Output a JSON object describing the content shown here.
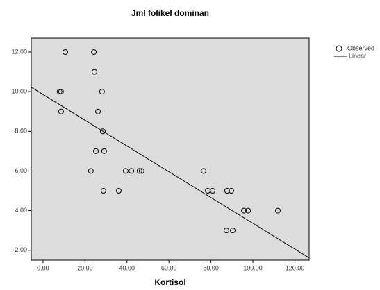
{
  "chart_data": {
    "type": "scatter",
    "title": "Jml folikel dominan",
    "x_label": "Kortisol",
    "series": [
      {
        "name": "Observed",
        "color": "#000000",
        "x": [
          10.6,
          24.2,
          24.5,
          7.9,
          8.6,
          28.1,
          8.6,
          26.2,
          28.5,
          25.2,
          29.1,
          22.8,
          39.4,
          42.1,
          46.0,
          47.0,
          76.5,
          28.8,
          36.1,
          78.5,
          80.8,
          87.7,
          89.7,
          95.7,
          97.7,
          111.9,
          87.4,
          90.4
        ],
        "values": [
          12,
          12,
          11,
          10,
          10,
          10,
          9,
          9,
          8,
          7,
          7,
          6,
          6,
          6,
          6,
          6,
          6,
          5,
          5,
          5,
          5,
          5,
          5,
          4,
          4,
          4,
          3,
          3
        ]
      }
    ],
    "fit": {
      "name": "Linear",
      "color": "#000000",
      "intercept": 9.86,
      "slope": -0.065
    },
    "xlim": [
      -5.6,
      126.8
    ],
    "ylim": [
      1.5,
      12.7
    ],
    "xticks": [
      {
        "value": 0,
        "label": "0.00"
      },
      {
        "value": 20,
        "label": "20.00"
      },
      {
        "value": 40,
        "label": "40.00"
      },
      {
        "value": 60,
        "label": "60.00"
      },
      {
        "value": 80,
        "label": "80.00"
      },
      {
        "value": 100,
        "label": "100.00"
      },
      {
        "value": 120,
        "label": "120.00"
      }
    ],
    "yticks": [
      {
        "value": 2,
        "label": "2.00"
      },
      {
        "value": 4,
        "label": "4.00"
      },
      {
        "value": 6,
        "label": "6.00"
      },
      {
        "value": 8,
        "label": "8.00"
      },
      {
        "value": 10,
        "label": "10.00"
      },
      {
        "value": 12,
        "label": "12.00"
      }
    ],
    "legend": "top-right",
    "plot_background": "#dcdcdc"
  }
}
